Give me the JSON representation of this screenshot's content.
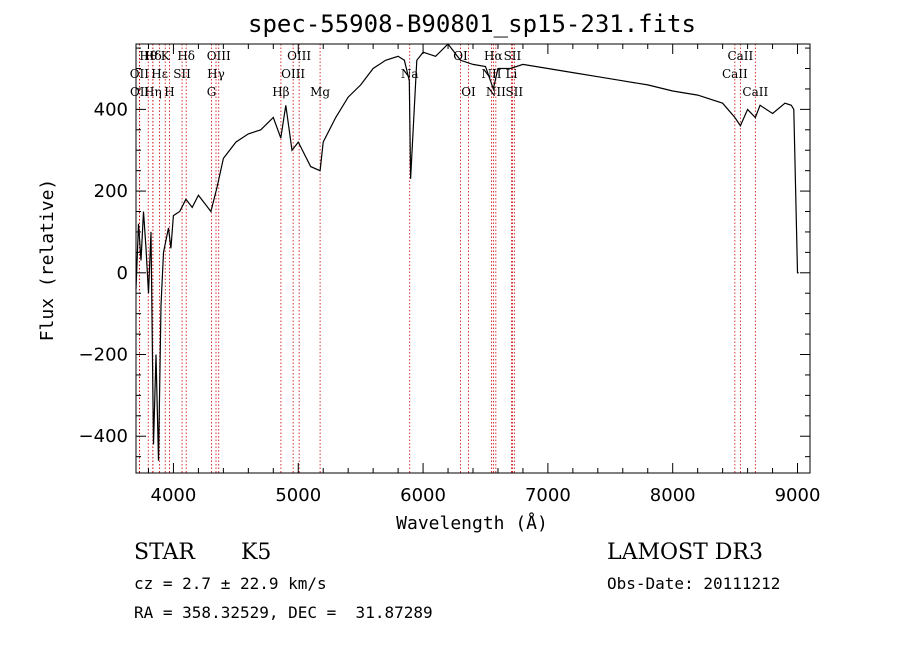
{
  "chart_data": {
    "type": "line",
    "title": "spec-55908-B90801_sp15-231.fits",
    "xlabel": "Wavelength (Å)",
    "ylabel": "Flux (relative)",
    "xlim": [
      3700,
      9100
    ],
    "ylim": [
      -490,
      560
    ],
    "xticks": [
      4000,
      5000,
      6000,
      7000,
      8000,
      9000
    ],
    "yticks": [
      -400,
      -200,
      0,
      200,
      400
    ],
    "series": [
      {
        "x": [
          3700,
          3720,
          3740,
          3760,
          3780,
          3800,
          3820,
          3840,
          3860,
          3880,
          3900,
          3920,
          3940,
          3960,
          3980,
          4000,
          4050,
          4100,
          4150,
          4200,
          4250,
          4300,
          4350,
          4400,
          4500,
          4600,
          4700,
          4800,
          4860,
          4900,
          4950,
          5000,
          5100,
          5175,
          5200,
          5300,
          5400,
          5500,
          5600,
          5700,
          5800,
          5850,
          5890,
          5900,
          5950,
          6000,
          6100,
          6200,
          6300,
          6400,
          6500,
          6563,
          6600,
          6700,
          6800,
          7000,
          7200,
          7400,
          7600,
          7800,
          8000,
          8200,
          8400,
          8498,
          8542,
          8600,
          8662,
          8700,
          8800,
          8900,
          8950,
          8970,
          9000,
          9010
        ],
        "y": [
          -40,
          120,
          30,
          150,
          60,
          -50,
          100,
          -420,
          -200,
          -460,
          -80,
          50,
          80,
          110,
          60,
          140,
          150,
          180,
          160,
          190,
          170,
          150,
          210,
          280,
          320,
          340,
          350,
          380,
          330,
          410,
          300,
          320,
          260,
          250,
          320,
          380,
          430,
          460,
          500,
          520,
          530,
          520,
          470,
          230,
          520,
          540,
          530,
          560,
          520,
          510,
          505,
          450,
          500,
          500,
          510,
          500,
          490,
          480,
          470,
          460,
          445,
          435,
          415,
          380,
          360,
          400,
          380,
          410,
          390,
          415,
          410,
          400,
          0,
          0
        ]
      }
    ],
    "spectral_lines": [
      {
        "label": "Hθ",
        "x": 3798,
        "row": 0
      },
      {
        "label": "OII",
        "x": 3727,
        "row": 1
      },
      {
        "label": "OII",
        "x": 3729,
        "row": 2
      },
      {
        "label": "Hδ",
        "x": 3835,
        "row": 0
      },
      {
        "label": "Hε",
        "x": 3889,
        "row": 1
      },
      {
        "label": "Hη",
        "x": 3835,
        "row": 2
      },
      {
        "label": "K",
        "x": 3934,
        "row": 0
      },
      {
        "label": "SII",
        "x": 4069,
        "row": 1
      },
      {
        "label": "H",
        "x": 3968,
        "row": 2
      },
      {
        "label": "Hδ",
        "x": 4102,
        "row": 0
      },
      {
        "label": "OIII",
        "x": 4363,
        "row": 0
      },
      {
        "label": "Hγ",
        "x": 4341,
        "row": 1
      },
      {
        "label": "G",
        "x": 4305,
        "row": 2
      },
      {
        "label": "OIII",
        "x": 5007,
        "row": 0
      },
      {
        "label": "OIII",
        "x": 4959,
        "row": 1
      },
      {
        "label": "Hβ",
        "x": 4861,
        "row": 2
      },
      {
        "label": "Mg",
        "x": 5175,
        "row": 2
      },
      {
        "label": "Na",
        "x": 5893,
        "row": 1
      },
      {
        "label": "OI",
        "x": 6300,
        "row": 0
      },
      {
        "label": "OI",
        "x": 6364,
        "row": 2
      },
      {
        "label": "Hα",
        "x": 6563,
        "row": 0
      },
      {
        "label": "SII",
        "x": 6716,
        "row": 0
      },
      {
        "label": "NII",
        "x": 6548,
        "row": 1
      },
      {
        "label": "Li",
        "x": 6708,
        "row": 1
      },
      {
        "label": "NII",
        "x": 6583,
        "row": 2
      },
      {
        "label": "SII",
        "x": 6731,
        "row": 2
      },
      {
        "label": "CaII",
        "x": 8542,
        "row": 0
      },
      {
        "label": "CaII",
        "x": 8498,
        "row": 1
      },
      {
        "label": "CaII",
        "x": 8662,
        "row": 2
      }
    ]
  },
  "info": {
    "object_class": "STAR",
    "subclass": "K5",
    "survey": "LAMOST DR3",
    "cz": "cz = 2.7 ± 22.9 km/s",
    "obs_date": "Obs-Date: 20111212",
    "coords": "RA = 358.32529, DEC =  31.87289"
  }
}
